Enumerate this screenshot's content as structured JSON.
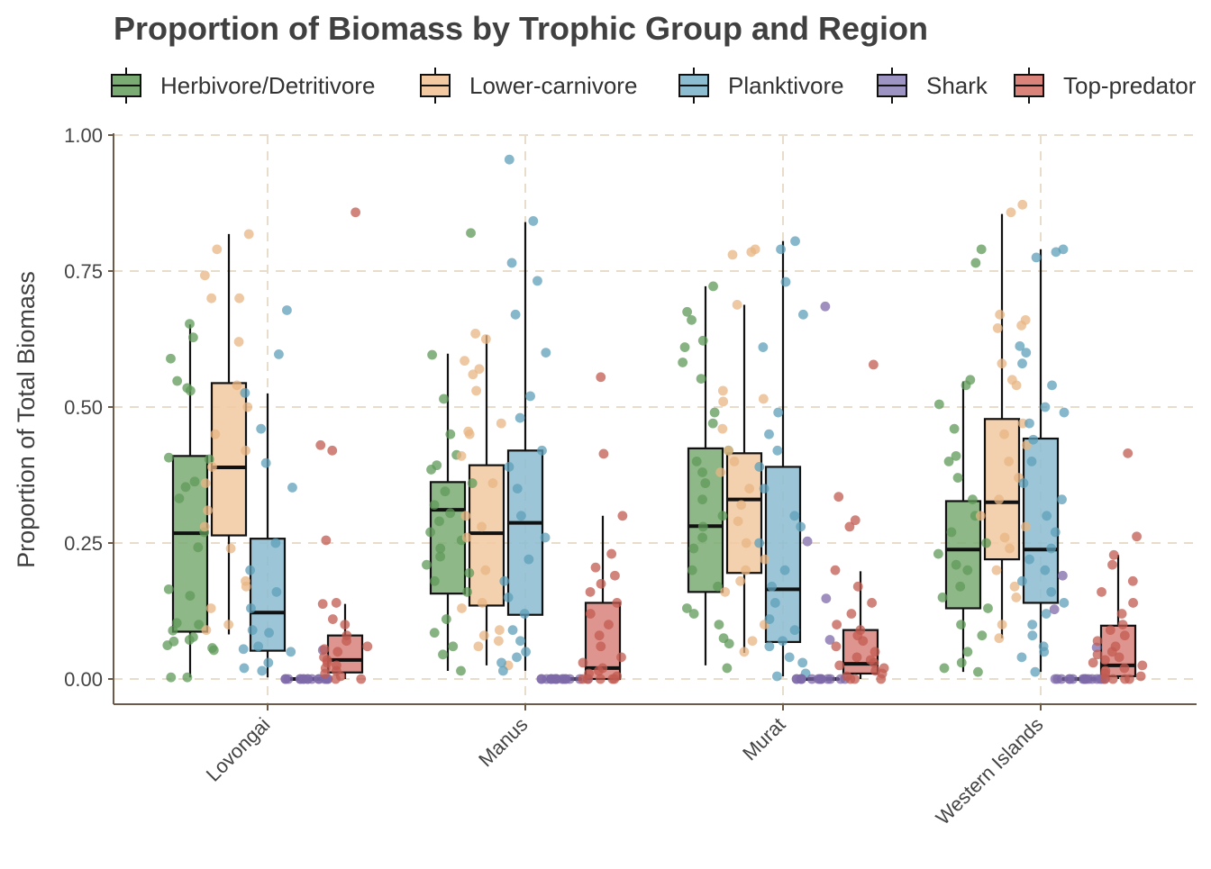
{
  "chart_data": {
    "type": "box",
    "title": "Proportion of Biomass by Trophic Group and Region",
    "ylabel": "Proportion of Total Biomass",
    "xlabel": "",
    "ylim": [
      -0.045,
      1.0
    ],
    "yticks": [
      0.0,
      0.25,
      0.5,
      0.75,
      1.0
    ],
    "ytick_labels": [
      "0.00",
      "0.25",
      "0.50",
      "0.75",
      "1.00"
    ],
    "grid": true,
    "legend_position": "top",
    "categories": [
      "Lovongai",
      "Manus",
      "Murat",
      "Western Islands"
    ],
    "series": [
      {
        "name": "Herbivore/Detritivore",
        "color": "#7aab72",
        "point_color": "#5f9a58",
        "boxes": [
          {
            "min": 0.003,
            "q1": 0.087,
            "median": 0.268,
            "q3": 0.41,
            "max": 0.652
          },
          {
            "min": 0.015,
            "q1": 0.157,
            "median": 0.311,
            "q3": 0.362,
            "max": 0.598
          },
          {
            "min": 0.025,
            "q1": 0.16,
            "median": 0.281,
            "q3": 0.424,
            "max": 0.722
          },
          {
            "min": 0.013,
            "q1": 0.13,
            "median": 0.238,
            "q3": 0.327,
            "max": 0.547
          }
        ],
        "points": [
          [
            0.653,
            0.628,
            0.589,
            0.548,
            0.535,
            0.53,
            0.407,
            0.404,
            0.363,
            0.353,
            0.332,
            0.27,
            0.242,
            0.165,
            0.153,
            0.103,
            0.1,
            0.089,
            0.077,
            0.072,
            0.069,
            0.062,
            0.057,
            0.053,
            0.003,
            0.003
          ],
          [
            0.82,
            0.596,
            0.515,
            0.45,
            0.412,
            0.393,
            0.385,
            0.36,
            0.345,
            0.32,
            0.305,
            0.29,
            0.27,
            0.255,
            0.24,
            0.225,
            0.21,
            0.195,
            0.18,
            0.16,
            0.11,
            0.085,
            0.06,
            0.045,
            0.015
          ],
          [
            0.722,
            0.675,
            0.66,
            0.622,
            0.61,
            0.582,
            0.552,
            0.49,
            0.47,
            0.42,
            0.4,
            0.38,
            0.36,
            0.33,
            0.3,
            0.28,
            0.26,
            0.24,
            0.2,
            0.17,
            0.13,
            0.12,
            0.1,
            0.075,
            0.065,
            0.02
          ],
          [
            0.79,
            0.765,
            0.55,
            0.54,
            0.505,
            0.46,
            0.41,
            0.4,
            0.37,
            0.33,
            0.3,
            0.27,
            0.25,
            0.23,
            0.21,
            0.2,
            0.17,
            0.15,
            0.13,
            0.1,
            0.08,
            0.05,
            0.03,
            0.02,
            0.013
          ]
        ]
      },
      {
        "name": "Lower-carnivore",
        "color": "#f2c9a0",
        "point_color": "#e8b583",
        "boxes": [
          {
            "min": 0.082,
            "q1": 0.264,
            "median": 0.389,
            "q3": 0.544,
            "max": 0.818
          },
          {
            "min": 0.025,
            "q1": 0.135,
            "median": 0.268,
            "q3": 0.393,
            "max": 0.632
          },
          {
            "min": 0.048,
            "q1": 0.195,
            "median": 0.33,
            "q3": 0.415,
            "max": 0.688
          },
          {
            "min": 0.075,
            "q1": 0.22,
            "median": 0.325,
            "q3": 0.478,
            "max": 0.855
          }
        ],
        "points": [
          [
            0.818,
            0.79,
            0.742,
            0.7,
            0.7,
            0.62,
            0.54,
            0.5,
            0.45,
            0.42,
            0.39,
            0.36,
            0.31,
            0.28,
            0.24,
            0.18,
            0.17,
            0.13,
            0.1,
            0.09
          ],
          [
            0.635,
            0.625,
            0.585,
            0.57,
            0.56,
            0.53,
            0.47,
            0.455,
            0.45,
            0.41,
            0.36,
            0.3,
            0.28,
            0.26,
            0.2,
            0.14,
            0.13,
            0.09,
            0.08,
            0.07,
            0.06,
            0.025
          ],
          [
            0.79,
            0.785,
            0.78,
            0.688,
            0.53,
            0.515,
            0.51,
            0.46,
            0.42,
            0.4,
            0.38,
            0.35,
            0.32,
            0.29,
            0.25,
            0.22,
            0.2,
            0.18,
            0.16,
            0.1,
            0.07,
            0.05
          ],
          [
            0.872,
            0.858,
            0.67,
            0.66,
            0.65,
            0.645,
            0.58,
            0.55,
            0.54,
            0.47,
            0.45,
            0.43,
            0.4,
            0.37,
            0.33,
            0.3,
            0.28,
            0.26,
            0.24,
            0.2,
            0.17,
            0.15,
            0.1,
            0.075
          ]
        ]
      },
      {
        "name": "Planktivore",
        "color": "#8bbcd0",
        "point_color": "#5e9fb8",
        "boxes": [
          {
            "min": 0.003,
            "q1": 0.052,
            "median": 0.122,
            "q3": 0.258,
            "max": 0.525
          },
          {
            "min": 0.015,
            "q1": 0.118,
            "median": 0.287,
            "q3": 0.42,
            "max": 0.84
          },
          {
            "min": 0.005,
            "q1": 0.068,
            "median": 0.165,
            "q3": 0.39,
            "max": 0.805
          },
          {
            "min": 0.013,
            "q1": 0.14,
            "median": 0.238,
            "q3": 0.442,
            "max": 0.79
          }
        ],
        "points": [
          [
            0.678,
            0.597,
            0.526,
            0.46,
            0.397,
            0.352,
            0.25,
            0.2,
            0.16,
            0.13,
            0.09,
            0.085,
            0.06,
            0.055,
            0.05,
            0.03,
            0.02,
            0.015
          ],
          [
            0.955,
            0.842,
            0.765,
            0.732,
            0.67,
            0.6,
            0.52,
            0.48,
            0.42,
            0.39,
            0.35,
            0.3,
            0.26,
            0.22,
            0.18,
            0.15,
            0.12,
            0.09,
            0.07,
            0.05,
            0.04,
            0.03,
            0.015
          ],
          [
            0.805,
            0.79,
            0.73,
            0.67,
            0.61,
            0.49,
            0.45,
            0.42,
            0.39,
            0.35,
            0.3,
            0.28,
            0.25,
            0.2,
            0.17,
            0.14,
            0.11,
            0.09,
            0.07,
            0.06,
            0.04,
            0.03,
            0.01,
            0.005
          ],
          [
            0.79,
            0.785,
            0.775,
            0.612,
            0.6,
            0.58,
            0.54,
            0.5,
            0.49,
            0.47,
            0.44,
            0.4,
            0.36,
            0.33,
            0.3,
            0.27,
            0.24,
            0.22,
            0.2,
            0.18,
            0.16,
            0.14,
            0.12,
            0.1,
            0.08,
            0.06,
            0.05,
            0.04,
            0.013
          ]
        ]
      },
      {
        "name": "Shark",
        "color": "#9e94c4",
        "point_color": "#7d6aa8",
        "boxes": [
          {
            "min": 0.0,
            "q1": 0.0,
            "median": 0.0,
            "q3": 0.0,
            "max": 0.0
          },
          {
            "min": 0.0,
            "q1": 0.0,
            "median": 0.0,
            "q3": 0.0,
            "max": 0.0
          },
          {
            "min": 0.0,
            "q1": 0.0,
            "median": 0.0,
            "q3": 0.0,
            "max": 0.0
          },
          {
            "min": 0.0,
            "q1": 0.0,
            "median": 0.0,
            "q3": 0.0,
            "max": 0.0
          }
        ],
        "points": [
          [
            0.053,
            0.0,
            0.0,
            0.0,
            0.0,
            0.0,
            0.0,
            0.0,
            0.0,
            0.0,
            0.0,
            0.0,
            0.0,
            0.0,
            0.0,
            0.0,
            0.0
          ],
          [
            0.0,
            0.0,
            0.0,
            0.0,
            0.0,
            0.0,
            0.0,
            0.0,
            0.0,
            0.0,
            0.0,
            0.0,
            0.0,
            0.0,
            0.0,
            0.0,
            0.0
          ],
          [
            0.685,
            0.253,
            0.148,
            0.072,
            0.0,
            0.0,
            0.0,
            0.0,
            0.0,
            0.0,
            0.0,
            0.0,
            0.0,
            0.0,
            0.0,
            0.0,
            0.0,
            0.0
          ],
          [
            0.19,
            0.128,
            0.058,
            0.0,
            0.0,
            0.0,
            0.0,
            0.0,
            0.0,
            0.0,
            0.0,
            0.0,
            0.0,
            0.0,
            0.0,
            0.0,
            0.0,
            0.0,
            0.0
          ]
        ]
      },
      {
        "name": "Top-predator",
        "color": "#d9837b",
        "point_color": "#c25b50",
        "boxes": [
          {
            "min": 0.0,
            "q1": 0.012,
            "median": 0.035,
            "q3": 0.08,
            "max": 0.138
          },
          {
            "min": 0.0,
            "q1": 0.0,
            "median": 0.02,
            "q3": 0.14,
            "max": 0.3
          },
          {
            "min": 0.0,
            "q1": 0.01,
            "median": 0.028,
            "q3": 0.09,
            "max": 0.198
          },
          {
            "min": 0.0,
            "q1": 0.005,
            "median": 0.025,
            "q3": 0.098,
            "max": 0.228
          }
        ],
        "points": [
          [
            0.858,
            0.43,
            0.42,
            0.255,
            0.14,
            0.138,
            0.11,
            0.1,
            0.08,
            0.07,
            0.06,
            0.055,
            0.05,
            0.04,
            0.035,
            0.03,
            0.025,
            0.02,
            0.015,
            0.01,
            0.005,
            0.0,
            0.0
          ],
          [
            0.555,
            0.414,
            0.3,
            0.23,
            0.205,
            0.19,
            0.175,
            0.16,
            0.14,
            0.12,
            0.1,
            0.08,
            0.06,
            0.04,
            0.03,
            0.02,
            0.015,
            0.01,
            0.005,
            0.0,
            0.0,
            0.0,
            0.0,
            0.0
          ],
          [
            0.578,
            0.335,
            0.292,
            0.28,
            0.2,
            0.17,
            0.14,
            0.12,
            0.1,
            0.09,
            0.08,
            0.07,
            0.06,
            0.05,
            0.04,
            0.035,
            0.03,
            0.025,
            0.02,
            0.015,
            0.01,
            0.005,
            0.0,
            0.0,
            0.0
          ],
          [
            0.415,
            0.262,
            0.228,
            0.21,
            0.18,
            0.16,
            0.14,
            0.12,
            0.1,
            0.09,
            0.08,
            0.07,
            0.06,
            0.05,
            0.045,
            0.04,
            0.035,
            0.03,
            0.025,
            0.02,
            0.015,
            0.01,
            0.005,
            0.0,
            0.0,
            0.0,
            0.0
          ]
        ]
      }
    ]
  }
}
